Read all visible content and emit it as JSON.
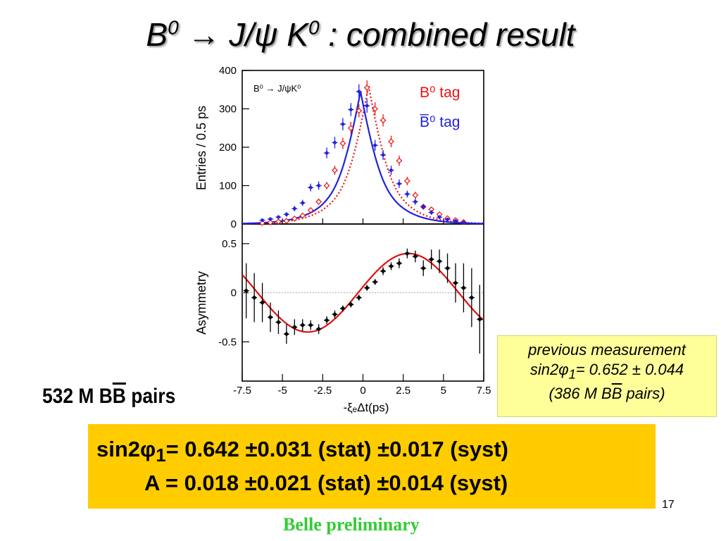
{
  "slide": {
    "title": {
      "a": "B",
      "a_sup": "0",
      "arrow": "→",
      "b": "J/ψ K",
      "b_sup": "0",
      "c": " : combined result"
    },
    "pairs": {
      "num": "532 M B",
      "ov": "B",
      "rest": " pairs"
    },
    "previous": {
      "line1": "previous measurement",
      "line2a": "sin2φ",
      "line2_sub": "1",
      "line2b": "= 0.652 ± 0.044",
      "line3a": "(386 M B",
      "line3_ov": "B",
      "line3b": " pairs)"
    },
    "result": {
      "r1a": "sin2φ",
      "r1_sub": "1",
      "r1b": "= 0.642 ±0.031 (stat) ±0.017 (syst)",
      "r2": "A =  0.018 ±0.021 (stat) ±0.014 (syst)"
    },
    "slide_number": "17",
    "footer": "Belle preliminary"
  },
  "chart_data": [
    {
      "type": "scatter",
      "title": "B⁰ → J/ψK⁰",
      "ylabel": "Entries / 0.5 ps",
      "xlim": [
        -7.5,
        7.5
      ],
      "ylim": [
        0,
        400
      ],
      "yticks": [
        "0",
        "100",
        "200",
        "300",
        "400"
      ],
      "legend_position": "top-right",
      "series": [
        {
          "name": "B⁰ tag",
          "color": "#ee1111",
          "x": [
            -6.25,
            -5.75,
            -5.25,
            -4.75,
            -4.25,
            -3.75,
            -3.25,
            -2.75,
            -2.25,
            -1.75,
            -1.25,
            -0.75,
            -0.25,
            0.25,
            0.75,
            1.25,
            1.75,
            2.25,
            2.75,
            3.25,
            3.75,
            4.25,
            4.75,
            5.25,
            5.75,
            6.25
          ],
          "values": [
            3,
            4,
            6,
            8,
            14,
            22,
            36,
            58,
            100,
            140,
            210,
            250,
            295,
            355,
            300,
            270,
            215,
            165,
            112,
            75,
            45,
            38,
            25,
            15,
            10,
            5
          ],
          "errors": [
            3,
            3,
            4,
            4,
            5,
            6,
            7,
            8,
            10,
            12,
            15,
            16,
            17,
            19,
            17,
            16,
            15,
            13,
            11,
            9,
            7,
            6,
            5,
            4,
            3,
            3
          ]
        },
        {
          "name": "B̅⁰ tag",
          "color": "#2222dd",
          "x": [
            -6.25,
            -5.75,
            -5.25,
            -4.75,
            -4.25,
            -3.75,
            -3.25,
            -2.75,
            -2.25,
            -1.75,
            -1.25,
            -0.75,
            -0.25,
            0.25,
            0.75,
            1.25,
            1.75,
            2.25,
            2.75,
            3.25,
            3.75,
            4.25,
            4.75,
            5.25,
            5.75,
            6.25
          ],
          "values": [
            10,
            13,
            18,
            25,
            40,
            55,
            95,
            100,
            185,
            212,
            260,
            298,
            345,
            308,
            205,
            180,
            140,
            105,
            78,
            58,
            45,
            30,
            18,
            12,
            8,
            4
          ],
          "errors": [
            4,
            4,
            5,
            6,
            7,
            8,
            10,
            11,
            14,
            15,
            16,
            17,
            19,
            18,
            14,
            13,
            12,
            11,
            9,
            8,
            7,
            6,
            5,
            4,
            3,
            3
          ]
        }
      ],
      "fits": [
        {
          "name": "B⁰ tag fit",
          "style": "dotted",
          "color": "#ee1111",
          "peak_x": 0.35,
          "peak_y": 360
        },
        {
          "name": "B̅⁰ tag fit",
          "style": "solid",
          "color": "#2222dd",
          "peak_x": -0.15,
          "peak_y": 345
        }
      ]
    },
    {
      "type": "scatter",
      "xlabel": "-ξₑΔt(ps)",
      "ylabel": "Asymmetry",
      "xlim": [
        -7.5,
        7.5
      ],
      "ylim": [
        -0.9,
        0.7
      ],
      "xticks": [
        "-7.5",
        "-5",
        "-2.5",
        "0",
        "2.5",
        "5",
        "7.5"
      ],
      "yticks": [
        "-0.5",
        "0",
        "0.5"
      ],
      "series": [
        {
          "name": "Asymmetry",
          "color": "#000000",
          "x": [
            -7.25,
            -6.75,
            -6.25,
            -5.75,
            -5.25,
            -4.75,
            -4.25,
            -3.75,
            -3.25,
            -2.75,
            -2.25,
            -1.75,
            -1.25,
            -0.75,
            -0.25,
            0.25,
            0.75,
            1.25,
            1.75,
            2.25,
            2.75,
            3.25,
            3.75,
            4.25,
            4.75,
            5.25,
            5.75,
            6.25,
            6.75,
            7.25
          ],
          "values": [
            0.02,
            -0.05,
            -0.1,
            -0.25,
            -0.3,
            -0.42,
            -0.35,
            -0.33,
            -0.33,
            -0.37,
            -0.28,
            -0.22,
            -0.16,
            -0.12,
            -0.05,
            0.05,
            0.11,
            0.22,
            0.27,
            0.3,
            0.4,
            0.37,
            0.25,
            0.34,
            0.32,
            0.25,
            0.1,
            0.05,
            -0.05,
            -0.27
          ],
          "errors": [
            0.28,
            0.25,
            0.2,
            0.15,
            0.12,
            0.1,
            0.08,
            0.06,
            0.05,
            0.05,
            0.04,
            0.04,
            0.03,
            0.03,
            0.03,
            0.03,
            0.03,
            0.04,
            0.04,
            0.05,
            0.05,
            0.06,
            0.08,
            0.1,
            0.12,
            0.15,
            0.2,
            0.25,
            0.3,
            0.35
          ]
        }
      ],
      "fit": {
        "name": "Asymmetry fit",
        "color": "#dd1111",
        "amplitude": 0.4,
        "period_ps": 12.5,
        "phase_ps": -0.3
      }
    }
  ]
}
